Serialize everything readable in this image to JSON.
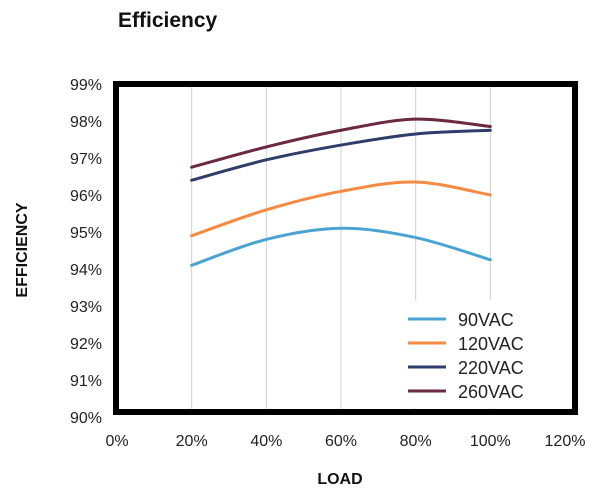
{
  "chart_data": {
    "type": "line",
    "title": "Efficiency",
    "xlabel": "LOAD",
    "ylabel": "EFFICIENCY",
    "xlim": [
      0,
      120
    ],
    "ylim": [
      90,
      99
    ],
    "x_ticks": [
      "0%",
      "20%",
      "40%",
      "60%",
      "80%",
      "100%",
      "120%"
    ],
    "y_ticks": [
      "90%",
      "91%",
      "92%",
      "93%",
      "94%",
      "95%",
      "96%",
      "97%",
      "98%",
      "99%"
    ],
    "grid": "vertical",
    "legend_position": "bottom-right",
    "x": [
      20,
      40,
      60,
      80,
      100
    ],
    "series": [
      {
        "name": "90VAC",
        "color": "#4aa3d3",
        "values": [
          94.1,
          94.8,
          95.1,
          94.85,
          94.25
        ]
      },
      {
        "name": "120VAC",
        "color": "#f58a42",
        "values": [
          94.9,
          95.6,
          96.1,
          96.35,
          96.0
        ]
      },
      {
        "name": "220VAC",
        "color": "#2f3d6b",
        "values": [
          96.4,
          96.95,
          97.35,
          97.65,
          97.75
        ]
      },
      {
        "name": "260VAC",
        "color": "#6b2a3e",
        "values": [
          96.75,
          97.3,
          97.75,
          98.05,
          97.85
        ]
      }
    ]
  }
}
